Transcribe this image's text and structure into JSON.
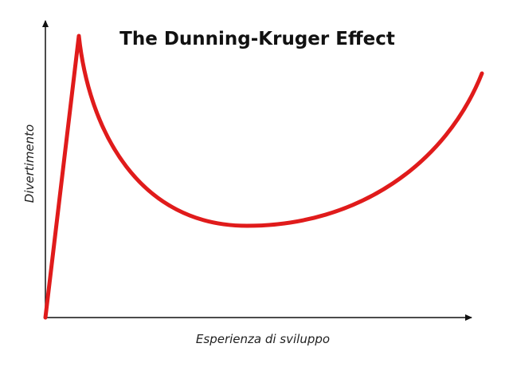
{
  "title": "The Dunning-Kruger Effect",
  "x_label": "Esperienza di sviluppo",
  "y_label": "Divertimento"
}
